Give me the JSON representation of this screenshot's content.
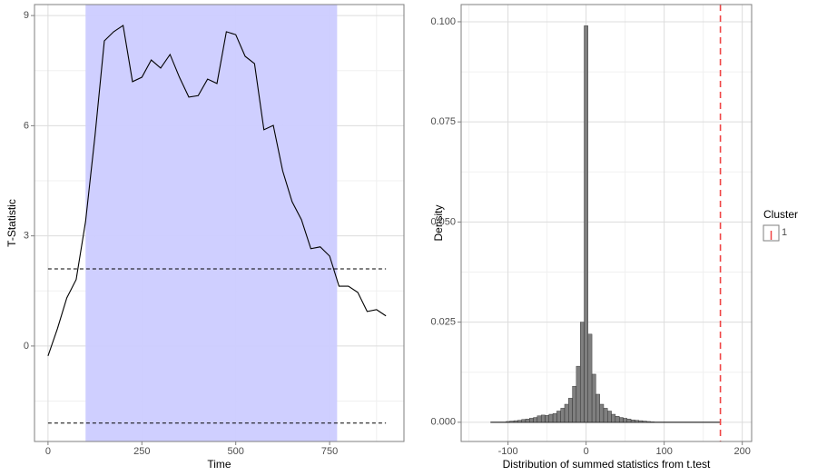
{
  "chart_data": [
    {
      "type": "line",
      "x_label": "Time",
      "y_label": "T-Statistic",
      "x": [
        0,
        25,
        50,
        75,
        100,
        125,
        150,
        175,
        200,
        225,
        250,
        275,
        300,
        325,
        350,
        375,
        400,
        425,
        450,
        475,
        500,
        525,
        550,
        575,
        600,
        625,
        650,
        675,
        700,
        725,
        750,
        775,
        800,
        825,
        850,
        875,
        900
      ],
      "values": [
        -0.27,
        0.47,
        1.31,
        1.81,
        3.39,
        5.71,
        8.31,
        8.56,
        8.73,
        7.2,
        7.32,
        7.79,
        7.57,
        7.94,
        7.32,
        6.78,
        6.82,
        7.27,
        7.15,
        8.56,
        8.48,
        7.89,
        7.69,
        5.89,
        6.01,
        4.77,
        3.93,
        3.44,
        2.65,
        2.7,
        2.45,
        1.63,
        1.63,
        1.46,
        0.94,
        0.99,
        0.82
      ],
      "color": "#000000",
      "shade": [
        100,
        770
      ],
      "shade_color": "#ccccff",
      "hlines": [
        2.1,
        -2.1
      ],
      "xlim": [
        -36,
        948
      ],
      "ylim": [
        -2.6,
        9.3
      ],
      "xticks": [
        0,
        250,
        500,
        750
      ],
      "yticks": [
        0,
        3,
        6,
        9
      ],
      "grid": true
    },
    {
      "type": "histogram",
      "x_label": "Distribution of summed statistics from t.test",
      "y_label": "Density",
      "bins": [
        -122.5,
        -117.5,
        -112.5,
        -107.5,
        -102.5,
        -97.5,
        -92.5,
        -87.5,
        -82.5,
        -77.5,
        -72.5,
        -67.5,
        -62.5,
        -57.5,
        -52.5,
        -47.5,
        -42.5,
        -37.5,
        -32.5,
        -27.5,
        -22.5,
        -17.5,
        -12.5,
        -7.5,
        -2.5,
        2.5,
        7.5,
        12.5,
        17.5,
        22.5,
        27.5,
        32.5,
        37.5,
        42.5,
        47.5,
        52.5,
        57.5,
        62.5,
        67.5,
        72.5,
        77.5,
        82.5,
        87.5,
        92.5,
        97.5,
        102.5,
        107.5,
        112.5,
        117.5,
        122.5,
        127.5,
        132.5,
        137.5,
        142.5,
        147.5,
        152.5,
        157.5,
        162.5,
        167.5,
        172.5
      ],
      "values": [
        0,
        0,
        0,
        0,
        0.0002,
        0.0003,
        0.0004,
        0.0005,
        0.0007,
        0.0008,
        0.001,
        0.0012,
        0.0016,
        0.0018,
        0.0017,
        0.002,
        0.0022,
        0.0028,
        0.0035,
        0.0045,
        0.006,
        0.009,
        0.014,
        0.025,
        0.099,
        0.022,
        0.012,
        0.007,
        0.0045,
        0.0035,
        0.0028,
        0.002,
        0.0015,
        0.0012,
        0.001,
        0.0008,
        0.0006,
        0.0005,
        0.0004,
        0.0003,
        0.0002,
        0.0001,
        0,
        0,
        0,
        0,
        0,
        0,
        0,
        0,
        0,
        0,
        0,
        0,
        0,
        0,
        0,
        0,
        0
      ],
      "color": "#7f7f7f",
      "vlines": [
        {
          "name": "1",
          "value": 172,
          "color": "#f04545"
        }
      ],
      "legend_title": "Cluster",
      "xlim": [
        -160,
        212
      ],
      "ylim": [
        -0.0048,
        0.1043
      ],
      "xticks": [
        -100,
        0,
        100,
        200
      ],
      "yticks": [
        {
          "value": 0,
          "label": "0.000"
        },
        0.025,
        {
          "value": 0.05,
          "label": "0.050"
        },
        0.075,
        {
          "value": 0.1,
          "label": "0.100"
        }
      ],
      "grid": true
    }
  ]
}
